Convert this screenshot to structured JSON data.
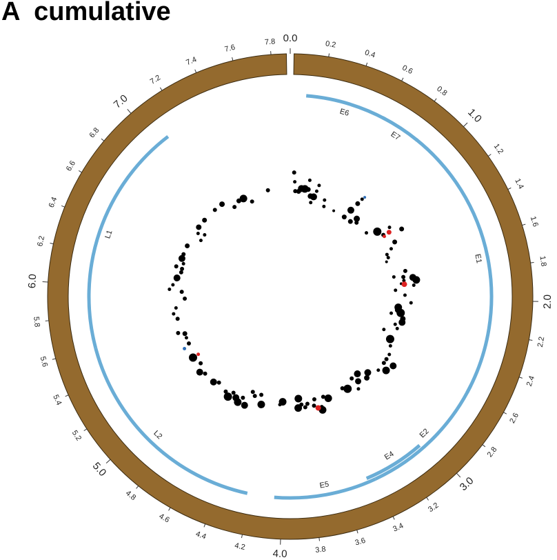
{
  "title": "A  cumulative",
  "colors": {
    "genome_ring": "#946a2e",
    "gene_track": "#6aadd6",
    "point_default": "#000000",
    "point_red": "#dd2222",
    "point_blue": "#2f6fb8"
  },
  "genome": {
    "length_kb": 7.9,
    "major_ticks": [
      "0.0",
      "1.0",
      "2.0",
      "3.0",
      "4.0",
      "5.0",
      "6.0",
      "7.0"
    ],
    "minor_ticks": [
      "0.2",
      "0.4",
      "0.6",
      "0.8",
      "1.2",
      "1.4",
      "1.6",
      "1.8",
      "2.2",
      "2.4",
      "2.6",
      "2.8",
      "3.2",
      "3.4",
      "3.6",
      "3.8",
      "4.2",
      "4.4",
      "4.6",
      "4.8",
      "5.2",
      "5.4",
      "5.6",
      "5.8",
      "6.2",
      "6.4",
      "6.6",
      "6.8",
      "7.2",
      "7.4",
      "7.6",
      "7.8"
    ]
  },
  "genes": [
    {
      "name": "E6",
      "start": 0.1,
      "end": 0.62
    },
    {
      "name": "E7",
      "start": 0.6,
      "end": 0.86
    },
    {
      "name": "E1",
      "start": 0.85,
      "end": 2.6
    },
    {
      "name": "E2",
      "start": 2.55,
      "end": 3.4
    },
    {
      "name": "E4",
      "start": 3.05,
      "end": 3.45
    },
    {
      "name": "E5",
      "start": 3.4,
      "end": 4.05
    },
    {
      "name": "L2",
      "start": 4.22,
      "end": 5.6
    },
    {
      "name": "L1",
      "start": 5.6,
      "end": 7.08
    }
  ],
  "points": [
    {
      "pos": 0.04,
      "r": 0.4,
      "size": 3,
      "color": "black"
    },
    {
      "pos": 0.05,
      "r": 0.37,
      "size": 2.5,
      "color": "black"
    },
    {
      "pos": 0.06,
      "r": 0.34,
      "size": 3,
      "color": "black"
    },
    {
      "pos": 0.1,
      "r": 0.34,
      "size": 3.5,
      "color": "black"
    },
    {
      "pos": 0.13,
      "r": 0.35,
      "size": 5,
      "color": "black"
    },
    {
      "pos": 0.17,
      "r": 0.35,
      "size": 5.5,
      "color": "black"
    },
    {
      "pos": 0.21,
      "r": 0.35,
      "size": 3.5,
      "color": "black"
    },
    {
      "pos": 0.21,
      "r": 0.38,
      "size": 2.5,
      "color": "black"
    },
    {
      "pos": 0.25,
      "r": 0.33,
      "size": 4,
      "color": "black"
    },
    {
      "pos": 0.27,
      "r": 0.31,
      "size": 2.5,
      "color": "black"
    },
    {
      "pos": 0.29,
      "r": 0.33,
      "size": 5,
      "color": "black"
    },
    {
      "pos": 0.31,
      "r": 0.35,
      "size": 2.5,
      "color": "black"
    },
    {
      "pos": 0.32,
      "r": 0.37,
      "size": 2.5,
      "color": "black"
    },
    {
      "pos": 0.43,
      "r": 0.33,
      "size": 2.5,
      "color": "black"
    },
    {
      "pos": 0.45,
      "r": 0.31,
      "size": 2.5,
      "color": "black"
    },
    {
      "pos": 0.59,
      "r": 0.31,
      "size": 2,
      "color": "black"
    },
    {
      "pos": 0.75,
      "r": 0.31,
      "size": 3.5,
      "color": "black"
    },
    {
      "pos": 0.77,
      "r": 0.34,
      "size": 5,
      "color": "black"
    },
    {
      "pos": 0.79,
      "r": 0.37,
      "size": 3.5,
      "color": "black"
    },
    {
      "pos": 0.8,
      "r": 0.39,
      "size": 2.5,
      "color": "black"
    },
    {
      "pos": 0.81,
      "r": 0.4,
      "size": 2,
      "color": "blue"
    },
    {
      "pos": 0.85,
      "r": 0.31,
      "size": 3.5,
      "color": "black"
    },
    {
      "pos": 0.89,
      "r": 0.33,
      "size": 4.5,
      "color": "black"
    },
    {
      "pos": 0.92,
      "r": 0.32,
      "size": 3,
      "color": "black"
    },
    {
      "pos": 1.1,
      "r": 0.32,
      "size": 2.5,
      "color": "black"
    },
    {
      "pos": 1.17,
      "r": 0.35,
      "size": 6,
      "color": "black"
    },
    {
      "pos": 1.21,
      "r": 0.39,
      "size": 2.5,
      "color": "black"
    },
    {
      "pos": 1.24,
      "r": 0.36,
      "size": 3,
      "color": "black"
    },
    {
      "pos": 1.25,
      "r": 0.38,
      "size": 3.5,
      "color": "red"
    },
    {
      "pos": 1.26,
      "r": 0.36,
      "size": 2.5,
      "color": "red"
    },
    {
      "pos": 1.29,
      "r": 0.42,
      "size": 3.5,
      "color": "black"
    },
    {
      "pos": 1.37,
      "r": 0.38,
      "size": 3.5,
      "color": "black"
    },
    {
      "pos": 1.42,
      "r": 0.36,
      "size": 2.5,
      "color": "black"
    },
    {
      "pos": 1.46,
      "r": 0.34,
      "size": 2.5,
      "color": "black"
    },
    {
      "pos": 1.5,
      "r": 0.34,
      "size": 2.5,
      "color": "black"
    },
    {
      "pos": 1.54,
      "r": 0.33,
      "size": 2,
      "color": "black"
    },
    {
      "pos": 1.7,
      "r": 0.38,
      "size": 3,
      "color": "black"
    },
    {
      "pos": 1.74,
      "r": 0.34,
      "size": 2.5,
      "color": "black"
    },
    {
      "pos": 1.76,
      "r": 0.37,
      "size": 3,
      "color": "black"
    },
    {
      "pos": 1.78,
      "r": 0.4,
      "size": 5,
      "color": "black"
    },
    {
      "pos": 1.8,
      "r": 0.37,
      "size": 2.5,
      "color": "black"
    },
    {
      "pos": 1.81,
      "r": 0.41,
      "size": 5.5,
      "color": "black"
    },
    {
      "pos": 1.83,
      "r": 0.36,
      "size": 2,
      "color": "black"
    },
    {
      "pos": 1.86,
      "r": 0.4,
      "size": 2.5,
      "color": "black"
    },
    {
      "pos": 1.84,
      "r": 0.37,
      "size": 4,
      "color": "red"
    },
    {
      "pos": 1.9,
      "r": 0.34,
      "size": 2.5,
      "color": "black"
    },
    {
      "pos": 1.96,
      "r": 0.37,
      "size": 2.5,
      "color": "black"
    },
    {
      "pos": 2.04,
      "r": 0.39,
      "size": 2.5,
      "color": "black"
    },
    {
      "pos": 2.1,
      "r": 0.35,
      "size": 5.5,
      "color": "black"
    },
    {
      "pos": 2.13,
      "r": 0.35,
      "size": 4.5,
      "color": "black"
    },
    {
      "pos": 2.16,
      "r": 0.36,
      "size": 6,
      "color": "black"
    },
    {
      "pos": 2.18,
      "r": 0.33,
      "size": 2.5,
      "color": "black"
    },
    {
      "pos": 2.22,
      "r": 0.37,
      "size": 4,
      "color": "black"
    },
    {
      "pos": 2.26,
      "r": 0.37,
      "size": 5,
      "color": "black"
    },
    {
      "pos": 2.3,
      "r": 0.35,
      "size": 2.5,
      "color": "black"
    },
    {
      "pos": 2.34,
      "r": 0.36,
      "size": 2.5,
      "color": "black"
    },
    {
      "pos": 2.4,
      "r": 0.32,
      "size": 2.5,
      "color": "black"
    },
    {
      "pos": 2.48,
      "r": 0.35,
      "size": 6,
      "color": "black"
    },
    {
      "pos": 2.55,
      "r": 0.36,
      "size": 2.5,
      "color": "black"
    },
    {
      "pos": 2.64,
      "r": 0.37,
      "size": 2.5,
      "color": "black"
    },
    {
      "pos": 2.7,
      "r": 0.37,
      "size": 3,
      "color": "black"
    },
    {
      "pos": 2.72,
      "r": 0.4,
      "size": 5,
      "color": "black"
    },
    {
      "pos": 2.75,
      "r": 0.37,
      "size": 3,
      "color": "black"
    },
    {
      "pos": 2.8,
      "r": 0.39,
      "size": 5.5,
      "color": "black"
    },
    {
      "pos": 2.85,
      "r": 0.37,
      "size": 2.5,
      "color": "black"
    },
    {
      "pos": 2.95,
      "r": 0.35,
      "size": 5,
      "color": "black"
    },
    {
      "pos": 3.0,
      "r": 0.36,
      "size": 4,
      "color": "black"
    },
    {
      "pos": 3.05,
      "r": 0.33,
      "size": 5,
      "color": "black"
    },
    {
      "pos": 3.1,
      "r": 0.35,
      "size": 4.5,
      "color": "black"
    },
    {
      "pos": 3.14,
      "r": 0.33,
      "size": 3,
      "color": "black"
    },
    {
      "pos": 3.15,
      "r": 0.37,
      "size": 2.5,
      "color": "black"
    },
    {
      "pos": 3.25,
      "r": 0.35,
      "size": 6,
      "color": "black"
    },
    {
      "pos": 3.3,
      "r": 0.34,
      "size": 3,
      "color": "black"
    },
    {
      "pos": 3.5,
      "r": 0.35,
      "size": 5.5,
      "color": "black"
    },
    {
      "pos": 3.55,
      "r": 0.34,
      "size": 3,
      "color": "black"
    },
    {
      "pos": 3.6,
      "r": 0.37,
      "size": 3,
      "color": "black"
    },
    {
      "pos": 3.6,
      "r": 0.38,
      "size": 5.5,
      "color": "black"
    },
    {
      "pos": 3.64,
      "r": 0.37,
      "size": 4,
      "color": "red"
    },
    {
      "pos": 3.66,
      "r": 0.34,
      "size": 3,
      "color": "black"
    },
    {
      "pos": 3.68,
      "r": 0.36,
      "size": 3,
      "color": "black"
    },
    {
      "pos": 3.75,
      "r": 0.35,
      "size": 3,
      "color": "black"
    },
    {
      "pos": 3.78,
      "r": 0.36,
      "size": 3,
      "color": "black"
    },
    {
      "pos": 3.82,
      "r": 0.35,
      "size": 3,
      "color": "black"
    },
    {
      "pos": 3.85,
      "r": 0.33,
      "size": 5.5,
      "color": "black"
    },
    {
      "pos": 3.86,
      "r": 0.36,
      "size": 5.5,
      "color": "black"
    },
    {
      "pos": 4.04,
      "r": 0.34,
      "size": 5.5,
      "color": "black"
    },
    {
      "pos": 4.07,
      "r": 0.35,
      "size": 2.5,
      "color": "black"
    },
    {
      "pos": 4.28,
      "r": 0.36,
      "size": 5.5,
      "color": "black"
    },
    {
      "pos": 4.31,
      "r": 0.33,
      "size": 3,
      "color": "black"
    },
    {
      "pos": 4.38,
      "r": 0.34,
      "size": 3,
      "color": "black"
    },
    {
      "pos": 4.42,
      "r": 0.33,
      "size": 3,
      "color": "black"
    },
    {
      "pos": 4.45,
      "r": 0.38,
      "size": 5,
      "color": "black"
    },
    {
      "pos": 4.5,
      "r": 0.36,
      "size": 3,
      "color": "black"
    },
    {
      "pos": 4.53,
      "r": 0.38,
      "size": 5.5,
      "color": "black"
    },
    {
      "pos": 4.57,
      "r": 0.37,
      "size": 5,
      "color": "black"
    },
    {
      "pos": 4.62,
      "r": 0.36,
      "size": 3,
      "color": "black"
    },
    {
      "pos": 4.65,
      "r": 0.38,
      "size": 6,
      "color": "black"
    },
    {
      "pos": 4.7,
      "r": 0.37,
      "size": 3,
      "color": "black"
    },
    {
      "pos": 4.82,
      "r": 0.36,
      "size": 3,
      "color": "black"
    },
    {
      "pos": 4.87,
      "r": 0.37,
      "size": 5,
      "color": "black"
    },
    {
      "pos": 5.0,
      "r": 0.37,
      "size": 3,
      "color": "black"
    },
    {
      "pos": 5.05,
      "r": 0.38,
      "size": 5,
      "color": "black"
    },
    {
      "pos": 5.12,
      "r": 0.36,
      "size": 3,
      "color": "black"
    },
    {
      "pos": 5.22,
      "r": 0.37,
      "size": 6,
      "color": "black"
    },
    {
      "pos": 5.22,
      "r": 0.35,
      "size": 2.5,
      "color": "red"
    },
    {
      "pos": 5.35,
      "r": 0.38,
      "size": 2.5,
      "color": "blue"
    },
    {
      "pos": 5.38,
      "r": 0.36,
      "size": 3,
      "color": "black"
    },
    {
      "pos": 5.45,
      "r": 0.36,
      "size": 2.5,
      "color": "black"
    },
    {
      "pos": 5.5,
      "r": 0.36,
      "size": 3.5,
      "color": "black"
    },
    {
      "pos": 5.53,
      "r": 0.38,
      "size": 3,
      "color": "black"
    },
    {
      "pos": 5.68,
      "r": 0.37,
      "size": 3,
      "color": "black"
    },
    {
      "pos": 5.74,
      "r": 0.38,
      "size": 2.5,
      "color": "black"
    },
    {
      "pos": 5.8,
      "r": 0.37,
      "size": 2.5,
      "color": "black"
    },
    {
      "pos": 5.9,
      "r": 0.34,
      "size": 3,
      "color": "black"
    },
    {
      "pos": 5.98,
      "r": 0.35,
      "size": 3,
      "color": "black"
    },
    {
      "pos": 6.0,
      "r": 0.39,
      "size": 2.5,
      "color": "black"
    },
    {
      "pos": 6.05,
      "r": 0.38,
      "size": 2.5,
      "color": "black"
    },
    {
      "pos": 6.13,
      "r": 0.37,
      "size": 5,
      "color": "black"
    },
    {
      "pos": 6.2,
      "r": 0.36,
      "size": 3,
      "color": "black"
    },
    {
      "pos": 6.24,
      "r": 0.36,
      "size": 3,
      "color": "black"
    },
    {
      "pos": 6.25,
      "r": 0.38,
      "size": 3,
      "color": "black"
    },
    {
      "pos": 6.3,
      "r": 0.36,
      "size": 2.5,
      "color": "black"
    },
    {
      "pos": 6.35,
      "r": 0.37,
      "size": 5,
      "color": "black"
    },
    {
      "pos": 6.4,
      "r": 0.37,
      "size": 3,
      "color": "black"
    },
    {
      "pos": 6.5,
      "r": 0.37,
      "size": 3.5,
      "color": "black"
    },
    {
      "pos": 6.63,
      "r": 0.34,
      "size": 2.5,
      "color": "black"
    },
    {
      "pos": 6.68,
      "r": 0.36,
      "size": 2.5,
      "color": "black"
    },
    {
      "pos": 6.71,
      "r": 0.34,
      "size": 2.5,
      "color": "black"
    },
    {
      "pos": 6.74,
      "r": 0.37,
      "size": 4,
      "color": "black"
    },
    {
      "pos": 6.84,
      "r": 0.37,
      "size": 3.5,
      "color": "black"
    },
    {
      "pos": 7.0,
      "r": 0.37,
      "size": 3,
      "color": "black"
    },
    {
      "pos": 7.1,
      "r": 0.37,
      "size": 4,
      "color": "black"
    },
    {
      "pos": 7.2,
      "r": 0.34,
      "size": 3,
      "color": "black"
    },
    {
      "pos": 7.28,
      "r": 0.35,
      "size": 3.5,
      "color": "black"
    },
    {
      "pos": 7.34,
      "r": 0.35,
      "size": 5.5,
      "color": "black"
    },
    {
      "pos": 7.42,
      "r": 0.33,
      "size": 3,
      "color": "black"
    },
    {
      "pos": 7.64,
      "r": 0.35,
      "size": 3,
      "color": "black"
    }
  ]
}
